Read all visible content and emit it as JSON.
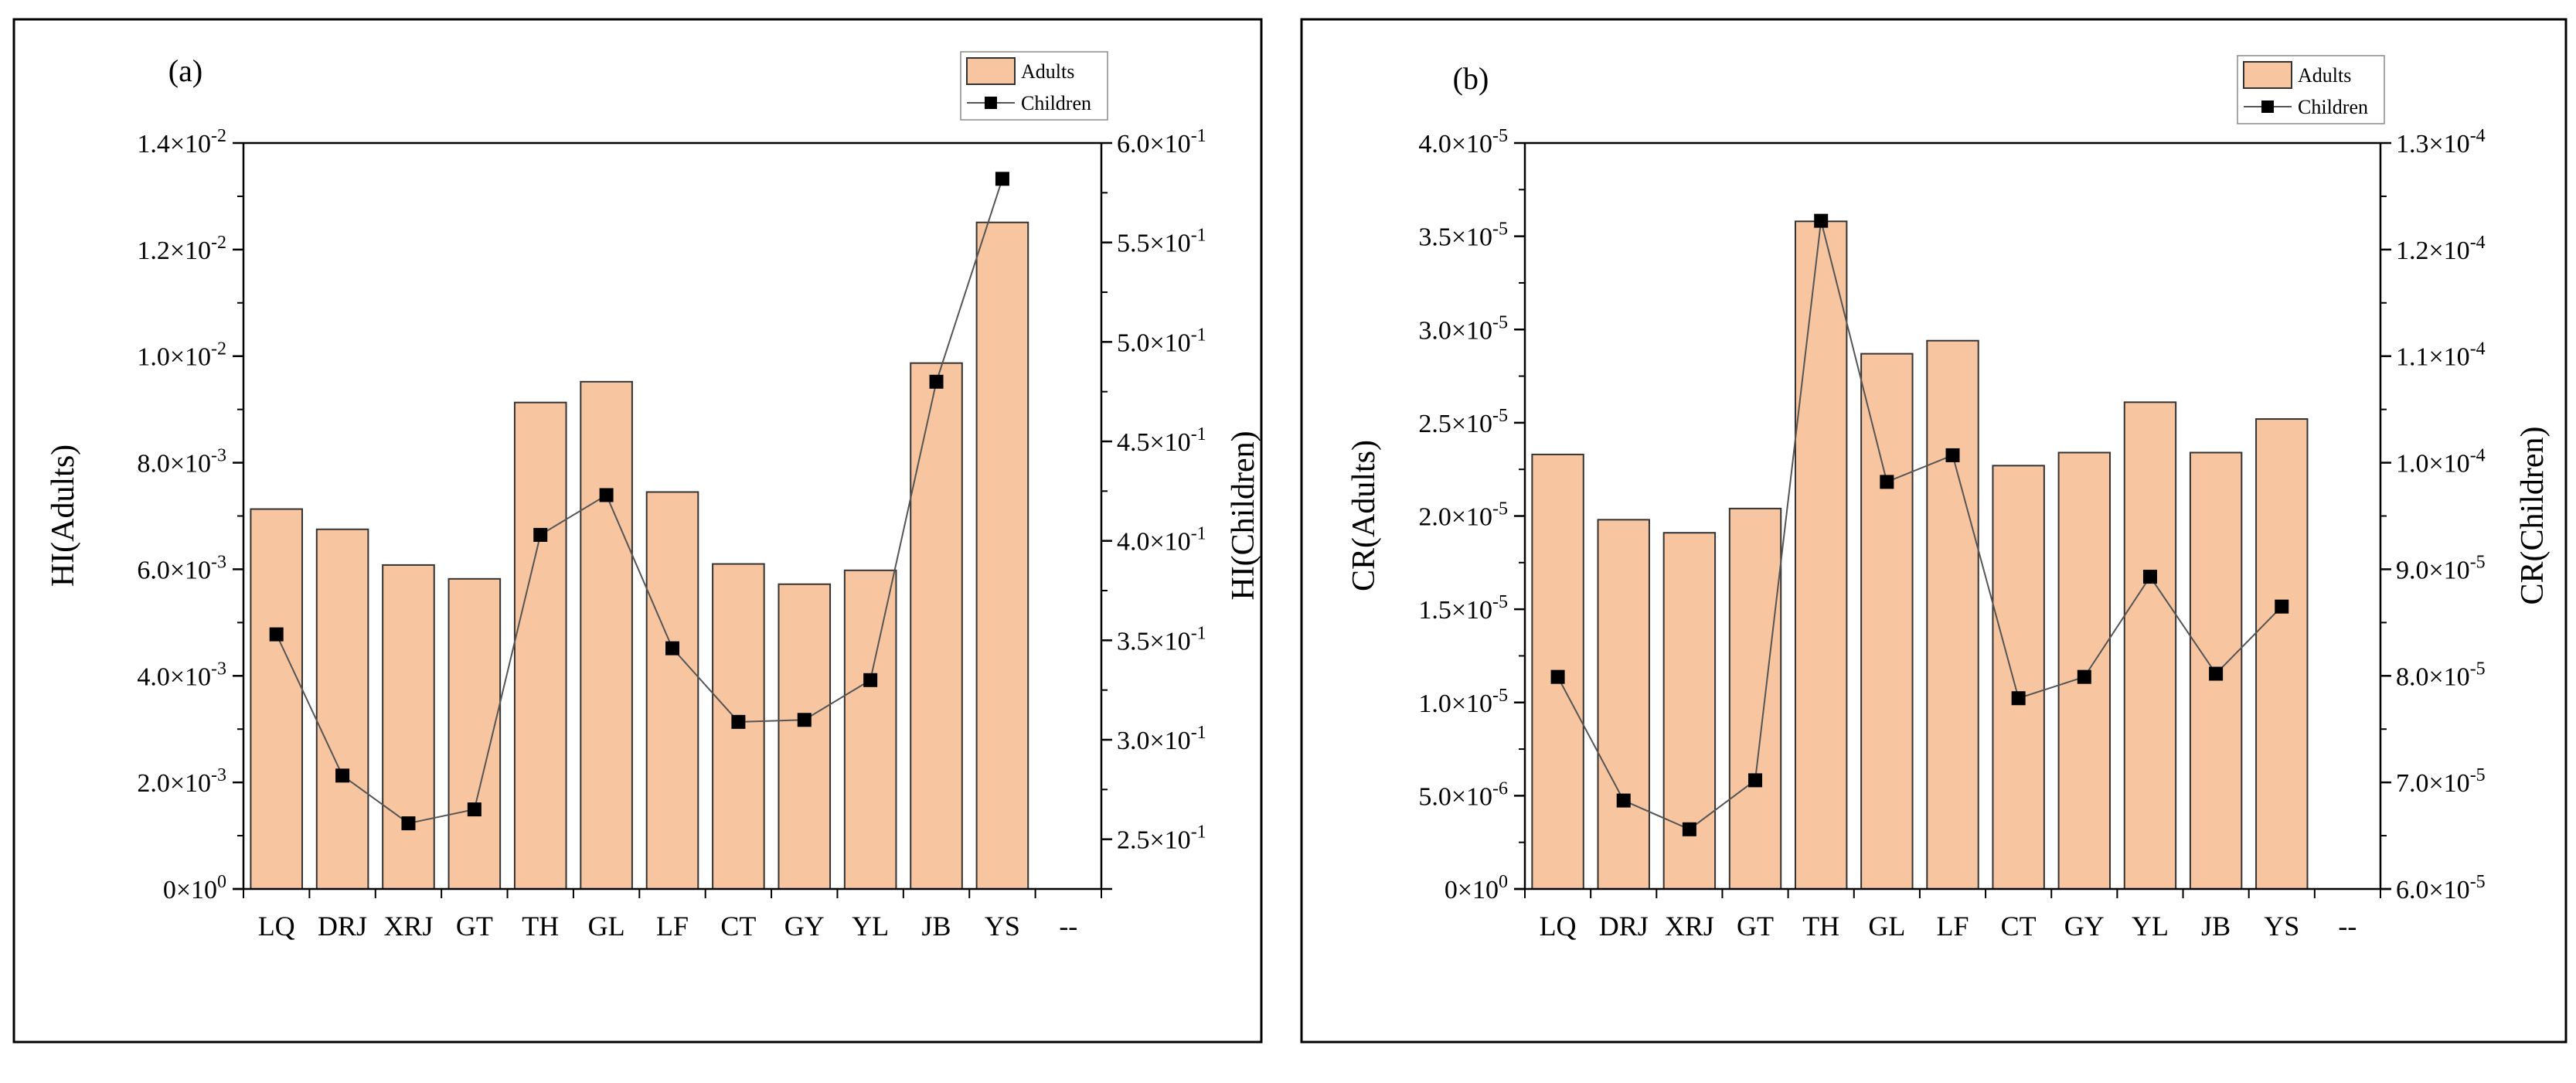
{
  "colors": {
    "bar_fill": "#F7C59F",
    "bar_stroke": "#333333",
    "line": "#555555",
    "marker": "#000000",
    "frame": "#000000"
  },
  "chart_data": [
    {
      "type": "bar+line",
      "panel_label": "(a)",
      "categories": [
        "LQ",
        "DRJ",
        "XRJ",
        "GT",
        "TH",
        "GL",
        "LF",
        "CT",
        "GY",
        "YL",
        "JB",
        "YS"
      ],
      "extra_tick_label": "--",
      "ylabel_left": "HI(Adults)",
      "ylabel_right": "HI(Children)",
      "legend": {
        "bar_label": "Adults",
        "line_label": "Children",
        "position": "top-right"
      },
      "left_axis": {
        "ylim": [
          0,
          0.014
        ],
        "ticks": [
          {
            "value": 0,
            "mant": "0",
            "exp": "0"
          },
          {
            "value": 0.002,
            "mant": "2.0",
            "exp": "-3"
          },
          {
            "value": 0.004,
            "mant": "4.0",
            "exp": "-3"
          },
          {
            "value": 0.006,
            "mant": "6.0",
            "exp": "-3"
          },
          {
            "value": 0.008,
            "mant": "8.0",
            "exp": "-3"
          },
          {
            "value": 0.01,
            "mant": "1.0",
            "exp": "-2"
          },
          {
            "value": 0.012,
            "mant": "1.2",
            "exp": "-2"
          },
          {
            "value": 0.014,
            "mant": "1.4",
            "exp": "-2"
          }
        ]
      },
      "right_axis": {
        "ylim": [
          0.225,
          0.6
        ],
        "ticks": [
          {
            "value": 0.25,
            "mant": "2.5",
            "exp": "-1"
          },
          {
            "value": 0.3,
            "mant": "3.0",
            "exp": "-1"
          },
          {
            "value": 0.35,
            "mant": "3.5",
            "exp": "-1"
          },
          {
            "value": 0.4,
            "mant": "4.0",
            "exp": "-1"
          },
          {
            "value": 0.45,
            "mant": "4.5",
            "exp": "-1"
          },
          {
            "value": 0.5,
            "mant": "5.0",
            "exp": "-1"
          },
          {
            "value": 0.55,
            "mant": "5.5",
            "exp": "-1"
          },
          {
            "value": 0.6,
            "mant": "6.0",
            "exp": "-1"
          }
        ]
      },
      "series": [
        {
          "name": "Adults",
          "kind": "bar",
          "axis": "left",
          "values": [
            0.00713,
            0.00675,
            0.00608,
            0.00582,
            0.00913,
            0.00952,
            0.00745,
            0.0061,
            0.00572,
            0.00598,
            0.00987,
            0.01251
          ]
        },
        {
          "name": "Children",
          "kind": "line",
          "axis": "right",
          "values": [
            0.353,
            0.282,
            0.258,
            0.265,
            0.403,
            0.423,
            0.346,
            0.309,
            0.31,
            0.33,
            0.48,
            0.582
          ]
        }
      ]
    },
    {
      "type": "bar+line",
      "panel_label": "(b)",
      "categories": [
        "LQ",
        "DRJ",
        "XRJ",
        "GT",
        "TH",
        "GL",
        "LF",
        "CT",
        "GY",
        "YL",
        "JB",
        "YS"
      ],
      "extra_tick_label": "--",
      "ylabel_left": "CR(Adults)",
      "ylabel_right": "CR(Children)",
      "legend": {
        "bar_label": "Adults",
        "line_label": "Children",
        "position": "top-right"
      },
      "left_axis": {
        "ylim": [
          0,
          4e-05
        ],
        "ticks": [
          {
            "value": 0,
            "mant": "0",
            "exp": "0"
          },
          {
            "value": 5e-06,
            "mant": "5.0",
            "exp": "-6"
          },
          {
            "value": 1e-05,
            "mant": "1.0",
            "exp": "-5"
          },
          {
            "value": 1.5e-05,
            "mant": "1.5",
            "exp": "-5"
          },
          {
            "value": 2e-05,
            "mant": "2.0",
            "exp": "-5"
          },
          {
            "value": 2.5e-05,
            "mant": "2.5",
            "exp": "-5"
          },
          {
            "value": 3e-05,
            "mant": "3.0",
            "exp": "-5"
          },
          {
            "value": 3.5e-05,
            "mant": "3.5",
            "exp": "-5"
          },
          {
            "value": 4e-05,
            "mant": "4.0",
            "exp": "-5"
          }
        ]
      },
      "right_axis": {
        "ylim": [
          6e-05,
          0.00013
        ],
        "ticks": [
          {
            "value": 6e-05,
            "mant": "6.0",
            "exp": "-5"
          },
          {
            "value": 7e-05,
            "mant": "7.0",
            "exp": "-5"
          },
          {
            "value": 8e-05,
            "mant": "8.0",
            "exp": "-5"
          },
          {
            "value": 9e-05,
            "mant": "9.0",
            "exp": "-5"
          },
          {
            "value": 0.0001,
            "mant": "1.0",
            "exp": "-4"
          },
          {
            "value": 0.00011,
            "mant": "1.1",
            "exp": "-4"
          },
          {
            "value": 0.00012,
            "mant": "1.2",
            "exp": "-4"
          },
          {
            "value": 0.00013,
            "mant": "1.3",
            "exp": "-4"
          }
        ]
      },
      "series": [
        {
          "name": "Adults",
          "kind": "bar",
          "axis": "left",
          "values": [
            2.33e-05,
            1.98e-05,
            1.91e-05,
            2.04e-05,
            3.58e-05,
            2.87e-05,
            2.94e-05,
            2.27e-05,
            2.34e-05,
            2.61e-05,
            2.34e-05,
            2.52e-05
          ]
        },
        {
          "name": "Children",
          "kind": "line",
          "axis": "right",
          "values": [
            7.99e-05,
            6.83e-05,
            6.56e-05,
            7.02e-05,
            0.0001227,
            9.82e-05,
            0.0001007,
            7.79e-05,
            7.99e-05,
            8.93e-05,
            8.02e-05,
            8.65e-05
          ]
        }
      ]
    }
  ]
}
